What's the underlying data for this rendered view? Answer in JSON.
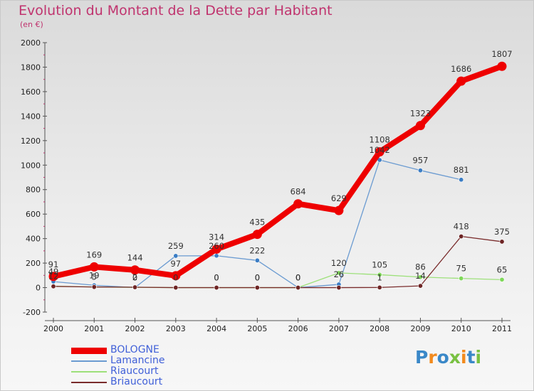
{
  "title": "Evolution du Montant de la Dette par Habitant",
  "subtitle": "(en €)",
  "logo": "Proxiti",
  "chart_data": {
    "type": "line",
    "title": "Evolution du Montant de la Dette par Habitant",
    "ylabel": "(en €)",
    "x": [
      "2000",
      "2001",
      "2002",
      "2003",
      "2004",
      "2005",
      "2006",
      "2007",
      "2008",
      "2009",
      "2010",
      "2011"
    ],
    "ylim": [
      -200,
      2000
    ],
    "yticks": [
      -200,
      0,
      200,
      400,
      600,
      800,
      1000,
      1200,
      1400,
      1600,
      1800,
      2000
    ],
    "legend_position": "bottom-left",
    "series": [
      {
        "name": "Lamancine",
        "color": "#6b9bd1",
        "point_color": "#3b7dc4",
        "values": [
          49,
          19,
          0,
          259,
          260,
          222,
          0,
          26,
          1042,
          957,
          881,
          null
        ],
        "labels": [
          "49",
          "19",
          "0",
          "259",
          "260",
          "222",
          "0",
          "26",
          "1042",
          "957",
          "881",
          ""
        ]
      },
      {
        "name": "Riaucourt",
        "color": "#9de07a",
        "point_color": "#7fd85a",
        "values": [
          12,
          5,
          2,
          0,
          0,
          0,
          0,
          120,
          105,
          86,
          75,
          65
        ],
        "labels": [
          "12",
          "5",
          "2",
          "0",
          "0",
          "0",
          "0",
          "120",
          "105",
          "86",
          "75",
          "65"
        ]
      },
      {
        "name": "Briaucourt",
        "color": "#7a2c2c",
        "point_color": "#6d2424",
        "values": [
          10,
          5,
          3,
          0,
          0,
          0,
          0,
          0,
          1,
          14,
          418,
          375
        ],
        "labels": [
          "",
          "",
          "",
          "",
          "0",
          "0",
          "0",
          "",
          "1",
          "14",
          "418",
          "375"
        ]
      },
      {
        "name": "BOLOGNE",
        "color": "#ee0000",
        "point_color": "#ee0000",
        "values": [
          91,
          169,
          144,
          97,
          314,
          435,
          684,
          629,
          1108,
          1323,
          1686,
          1807
        ],
        "labels": [
          "91",
          "169",
          "144",
          "97",
          "314",
          "435",
          "684",
          "629",
          "1108",
          "1323",
          "1686",
          "1807"
        ]
      }
    ],
    "legend": [
      "BOLOGNE",
      "Lamancine",
      "Riaucourt",
      "Briaucourt"
    ]
  }
}
